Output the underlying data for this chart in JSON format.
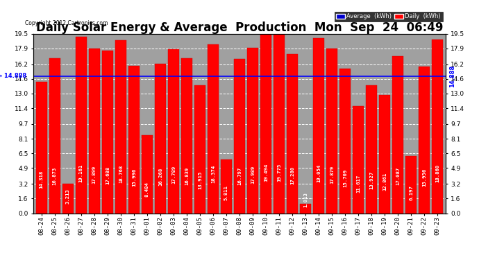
{
  "title": "Daily Solar Energy & Average  Production  Mon  Sep  24  06:49",
  "copyright": "Copyright 2012 Cartronics.com",
  "average_value": 14.888,
  "bar_color": "#FF0000",
  "average_line_color": "#0000FF",
  "background_color": "#FFFFFF",
  "plot_bg_color": "#A0A0A0",
  "categories": [
    "08-24",
    "08-25",
    "08-26",
    "08-27",
    "08-28",
    "08-29",
    "08-30",
    "08-31",
    "09-01",
    "09-02",
    "09-03",
    "09-04",
    "09-05",
    "09-06",
    "09-07",
    "09-08",
    "09-09",
    "09-10",
    "09-11",
    "09-12",
    "09-13",
    "09-14",
    "09-15",
    "09-16",
    "09-17",
    "09-18",
    "09-19",
    "09-20",
    "09-21",
    "09-22",
    "09-23"
  ],
  "values": [
    14.318,
    16.873,
    3.213,
    19.161,
    17.899,
    17.688,
    18.768,
    15.996,
    8.484,
    16.268,
    17.789,
    16.839,
    13.915,
    18.374,
    5.811,
    16.797,
    17.989,
    19.494,
    19.775,
    17.28,
    1.013,
    19.054,
    17.879,
    15.709,
    11.617,
    13.927,
    12.861,
    17.087,
    6.197,
    15.956,
    18.86
  ],
  "ylim": [
    0,
    19.5
  ],
  "yticks": [
    0.0,
    1.6,
    3.2,
    4.9,
    6.5,
    8.1,
    9.7,
    11.4,
    13.0,
    14.6,
    16.2,
    17.9,
    19.5
  ],
  "legend_avg_color": "#0000CD",
  "legend_daily_color": "#FF0000",
  "title_fontsize": 12,
  "tick_fontsize": 6.5,
  "value_fontsize": 5.2,
  "bar_width": 0.85
}
